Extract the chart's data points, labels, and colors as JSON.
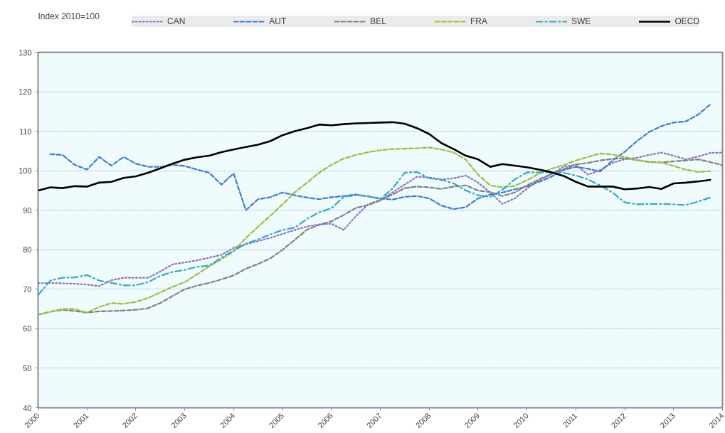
{
  "chart_data": {
    "type": "line",
    "ylabel": "Index 2010=100",
    "x": [
      2000,
      2000.25,
      2000.5,
      2000.75,
      2001,
      2001.25,
      2001.5,
      2001.75,
      2002,
      2002.25,
      2002.5,
      2002.75,
      2003,
      2003.25,
      2003.5,
      2003.75,
      2004,
      2004.25,
      2004.5,
      2004.75,
      2005,
      2005.25,
      2005.5,
      2005.75,
      2006,
      2006.25,
      2006.5,
      2006.75,
      2007,
      2007.25,
      2007.5,
      2007.75,
      2008,
      2008.25,
      2008.5,
      2008.75,
      2009,
      2009.25,
      2009.5,
      2009.75,
      2010,
      2010.25,
      2010.5,
      2010.75,
      2011,
      2011.25,
      2011.5,
      2011.75,
      2012,
      2012.25,
      2012.5,
      2012.75,
      2013,
      2013.25,
      2013.5,
      2013.75,
      2014
    ],
    "xlim": [
      2000,
      2014
    ],
    "xticks": [
      2000,
      2001,
      2002,
      2003,
      2004,
      2005,
      2006,
      2007,
      2008,
      2009,
      2010,
      2011,
      2012,
      2013,
      2014
    ],
    "ylim": [
      40,
      130
    ],
    "yticks": [
      40,
      50,
      60,
      70,
      80,
      90,
      100,
      110,
      120,
      130
    ],
    "grid": "y",
    "legend": "top",
    "series": [
      {
        "name": "CAN",
        "color": "#8f72c6",
        "line_style": "dotted",
        "values": [
          71.5,
          71.6,
          71.5,
          71.4,
          71.2,
          70.8,
          72.3,
          72.9,
          72.9,
          72.9,
          74.5,
          76.3,
          76.8,
          77.3,
          78.0,
          78.7,
          80.5,
          81.4,
          82.2,
          83.0,
          84.0,
          85.0,
          85.9,
          86.4,
          86.6,
          85.0,
          88.5,
          91.5,
          92.6,
          94.5,
          96.5,
          98.5,
          98.3,
          97.8,
          98.1,
          98.8,
          97.0,
          94.5,
          91.6,
          93.0,
          95.5,
          97.6,
          99.2,
          101.0,
          101.5,
          99.0,
          100.2,
          102.0,
          102.9,
          103.3,
          104.0,
          104.6,
          103.8,
          102.9,
          103.6,
          104.5,
          104.6
        ]
      },
      {
        "name": "AUT",
        "color": "#3f7bd6",
        "line_style": "dashed",
        "values": [
          null,
          104.2,
          104.0,
          101.5,
          100.3,
          103.5,
          101.3,
          103.5,
          101.8,
          101.0,
          101.0,
          101.5,
          101.2,
          100.3,
          99.5,
          96.5,
          99.3,
          90.0,
          92.8,
          93.3,
          94.5,
          93.8,
          93.2,
          92.8,
          93.3,
          93.6,
          94.0,
          93.5,
          93.0,
          92.7,
          93.4,
          93.6,
          93.0,
          91.2,
          90.3,
          90.8,
          93.0,
          94.0,
          94.5,
          95.3,
          96.0,
          97.2,
          98.5,
          100.2,
          101.0,
          100.5,
          99.8,
          102.6,
          104.8,
          107.5,
          109.8,
          111.3,
          112.2,
          112.5,
          114.2,
          116.8,
          null
        ]
      },
      {
        "name": "BEL",
        "color": "#808080",
        "line_style": "dashed",
        "values": [
          63.6,
          64.3,
          64.8,
          64.5,
          64.1,
          64.4,
          64.5,
          64.6,
          64.8,
          65.2,
          66.5,
          68.3,
          70.0,
          70.9,
          71.6,
          72.5,
          73.5,
          75.2,
          76.4,
          77.8,
          80.0,
          82.5,
          85.1,
          86.3,
          87.2,
          88.8,
          90.6,
          91.3,
          92.5,
          94.0,
          95.6,
          96.0,
          95.8,
          95.4,
          96.0,
          96.3,
          95.0,
          94.6,
          93.6,
          94.5,
          96.3,
          97.8,
          99.2,
          100.4,
          101.6,
          102.0,
          102.6,
          103.0,
          103.2,
          102.7,
          102.2,
          102.1,
          102.4,
          102.6,
          102.9,
          102.2,
          101.4
        ]
      },
      {
        "name": "FRA",
        "color": "#98c13a",
        "line_style": "dashed",
        "values": [
          63.6,
          64.3,
          65.0,
          65.0,
          64.1,
          65.5,
          66.5,
          66.3,
          66.8,
          67.8,
          69.2,
          70.6,
          71.8,
          73.8,
          75.8,
          77.6,
          79.6,
          83.0,
          85.8,
          88.6,
          91.5,
          94.5,
          97.0,
          99.5,
          101.5,
          103.1,
          104.0,
          104.7,
          105.2,
          105.5,
          105.6,
          105.7,
          105.9,
          105.4,
          104.6,
          102.8,
          99.0,
          96.3,
          95.8,
          96.2,
          97.6,
          99.3,
          100.5,
          101.4,
          102.6,
          103.5,
          104.4,
          104.1,
          103.5,
          102.7,
          102.3,
          102.1,
          101.2,
          100.3,
          99.7,
          99.9,
          null
        ]
      },
      {
        "name": "SWE",
        "color": "#35a9c9",
        "line_style": "dashdot",
        "values": [
          68.5,
          72.2,
          72.9,
          73.0,
          73.6,
          72.2,
          71.6,
          71.0,
          71.0,
          71.8,
          73.4,
          74.4,
          74.9,
          75.7,
          76.0,
          78.0,
          79.8,
          81.5,
          82.6,
          83.9,
          85.0,
          85.6,
          87.8,
          89.5,
          90.5,
          93.4,
          93.8,
          93.6,
          92.8,
          95.5,
          99.5,
          99.7,
          98.1,
          97.7,
          96.8,
          95.0,
          93.8,
          93.4,
          95.2,
          97.8,
          99.6,
          99.6,
          99.6,
          99.5,
          98.8,
          97.8,
          96.3,
          94.5,
          92.0,
          91.5,
          91.6,
          91.6,
          91.5,
          91.3,
          92.2,
          93.2,
          null
        ]
      },
      {
        "name": "OECD",
        "color": "#000000",
        "line_style": "solid",
        "values": [
          95.0,
          95.8,
          95.6,
          96.1,
          96.0,
          97.0,
          97.2,
          98.2,
          98.6,
          99.5,
          100.6,
          101.8,
          102.8,
          103.4,
          103.8,
          104.7,
          105.4,
          106.0,
          106.6,
          107.5,
          109.0,
          110.0,
          110.8,
          111.7,
          111.5,
          111.8,
          112.0,
          112.1,
          112.2,
          112.3,
          111.9,
          110.8,
          109.3,
          107.0,
          105.5,
          103.8,
          102.9,
          101.0,
          101.7,
          101.3,
          100.9,
          100.3,
          99.6,
          98.7,
          97.2,
          96.0,
          96.0,
          96.0,
          95.3,
          95.5,
          95.9,
          95.4,
          96.8,
          97.0,
          97.3,
          97.7,
          null
        ]
      }
    ]
  }
}
